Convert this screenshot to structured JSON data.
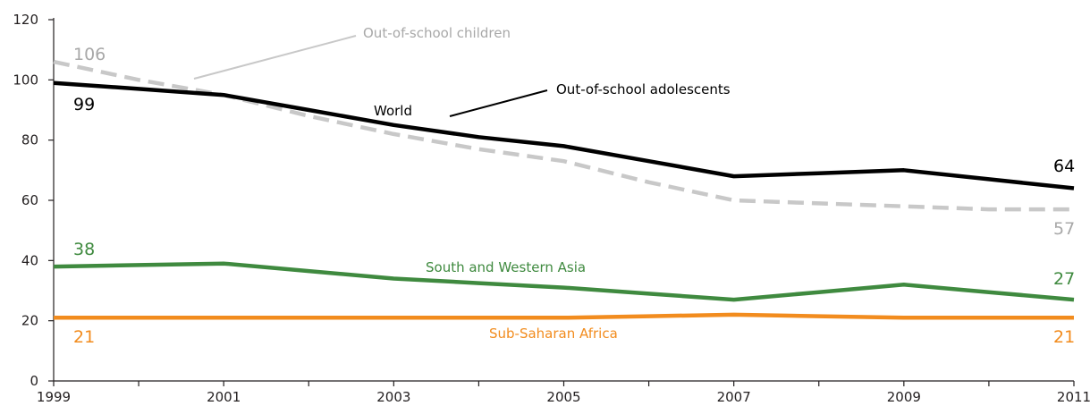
{
  "chart_data": {
    "type": "line",
    "title": "",
    "xlabel": "",
    "ylabel": "",
    "x": [
      1999,
      2000,
      2001,
      2002,
      2003,
      2004,
      2005,
      2006,
      2007,
      2008,
      2009,
      2010,
      2011
    ],
    "x_tick_labels": [
      "1999",
      "2001",
      "2003",
      "2005",
      "2007",
      "2009",
      "2011"
    ],
    "x_tick_values": [
      1999,
      2001,
      2003,
      2005,
      2007,
      2009,
      2011
    ],
    "xlim": [
      1999,
      2011
    ],
    "ylim": [
      0,
      120
    ],
    "y_ticks": [
      0,
      20,
      40,
      60,
      80,
      100,
      120
    ],
    "grid": false,
    "series": [
      {
        "name": "Out-of-school children",
        "color": "#c8c8c8",
        "dashed": true,
        "values": [
          106,
          100,
          95,
          88,
          82,
          77,
          73,
          66,
          60,
          59,
          58,
          57,
          57
        ]
      },
      {
        "name": "World",
        "color": "#000000",
        "dashed": false,
        "values": [
          99,
          97,
          95,
          90,
          85,
          81,
          78,
          73,
          68,
          69,
          70,
          67,
          64
        ]
      },
      {
        "name": "South and Western Asia",
        "color": "#3f8a3f",
        "dashed": false,
        "values": [
          38,
          38.5,
          39,
          36.5,
          34,
          32.5,
          31,
          29,
          27,
          29.5,
          32,
          29.5,
          27
        ]
      },
      {
        "name": "Sub-Saharan Africa",
        "color": "#f28c1e",
        "dashed": false,
        "values": [
          21,
          21,
          21,
          21,
          21,
          21,
          21,
          21.5,
          22,
          21.5,
          21,
          21,
          21
        ]
      }
    ],
    "annotations": {
      "children_label": "Out-of-school children",
      "adolescents_label": "Out-of-school adolescents",
      "world_label": "World",
      "swa_label": "South and Western Asia",
      "ssa_label": "Sub-Saharan Africa",
      "children_start": "106",
      "children_end": "57",
      "world_start": "99",
      "world_end": "64",
      "swa_start": "38",
      "swa_end": "27",
      "ssa_start": "21",
      "ssa_end": "21"
    }
  }
}
